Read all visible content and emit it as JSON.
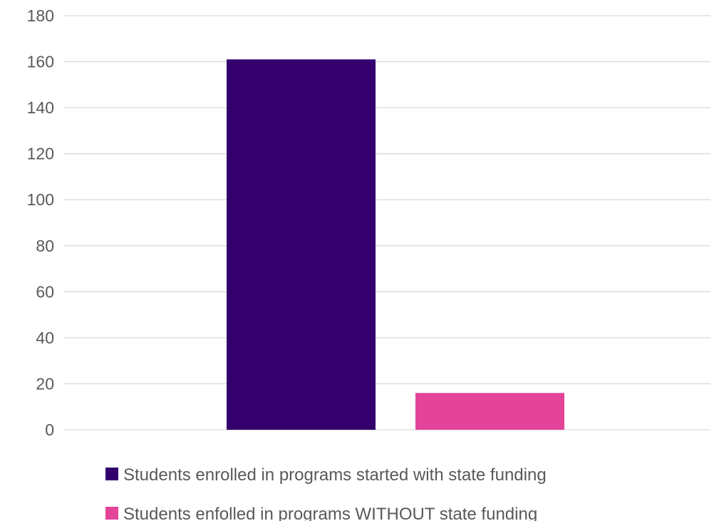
{
  "chart_data": {
    "type": "bar",
    "title": "",
    "xlabel": "",
    "ylabel": "",
    "categories": [
      ""
    ],
    "series": [
      {
        "name": "Students enrolled in programs started with state funding",
        "values": [
          161
        ],
        "color": "#33006e"
      },
      {
        "name": "Students enfolled in programs WITHOUT state funding",
        "values": [
          16
        ],
        "color": "#e3449a"
      }
    ],
    "ylim": [
      0,
      180
    ],
    "yticks": [
      "0",
      "20",
      "40",
      "60",
      "80",
      "100",
      "120",
      "140",
      "160",
      "180"
    ],
    "grid": true,
    "legend": "bottom"
  }
}
